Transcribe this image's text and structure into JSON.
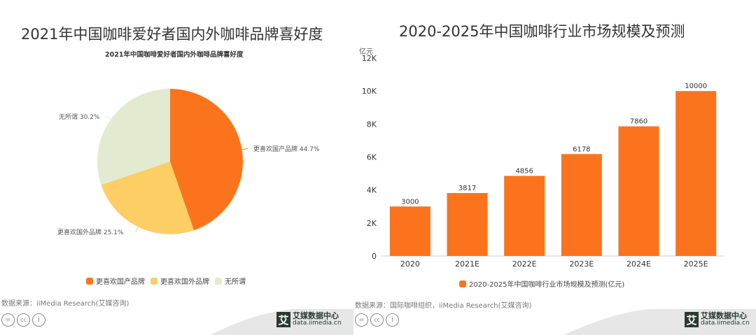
{
  "colors": {
    "orange": "#FB741D",
    "yellow": "#FDCE63",
    "green": "#E2EBCF",
    "footer_gray": "#e4e4e4",
    "logo_dark": "#2a3a33"
  },
  "chart_data": [
    {
      "type": "pie",
      "title": "2021年中国咖啡爱好者国内外咖啡品牌喜好度",
      "subtitle": "2021年中国咖啡爱好者国内外咖啡品牌喜好度",
      "slices": [
        {
          "label": "更喜欢国产品牌",
          "value": 44.7,
          "display": "更喜欢国产品牌 44.7%",
          "color": "#FB741D"
        },
        {
          "label": "更喜欢国外品牌",
          "value": 25.1,
          "display": "更喜欢国外品牌 25.1%",
          "color": "#FDCE63"
        },
        {
          "label": "无所谓",
          "value": 30.2,
          "display": "无所谓 30.2%",
          "color": "#E2EBCF"
        }
      ],
      "legend_position": "bottom",
      "source": "数据来源：iiMedia Research(艾媒咨询)"
    },
    {
      "type": "bar",
      "title": "2020-2025年中国咖啡行业市场规模及预测",
      "ylabel": "亿元",
      "categories": [
        "2020",
        "2021E",
        "2022E",
        "2023E",
        "2024E",
        "2025E"
      ],
      "values": [
        3000,
        3817,
        4856,
        6178,
        7860,
        10000
      ],
      "ylim": [
        0,
        12000
      ],
      "yticks": [
        {
          "v": 0,
          "label": "0"
        },
        {
          "v": 2000,
          "label": "2K"
        },
        {
          "v": 4000,
          "label": "4K"
        },
        {
          "v": 6000,
          "label": "6K"
        },
        {
          "v": 8000,
          "label": "8K"
        },
        {
          "v": 10000,
          "label": "10K"
        },
        {
          "v": 12000,
          "label": "12K"
        }
      ],
      "series_name": "2020-2025年中国咖啡行业市场规模及预测(亿元)",
      "color": "#FB741D",
      "grid": false,
      "legend_position": "bottom",
      "source": "数据来源：国际咖啡组织，iiMedia Research(艾媒咨询)"
    }
  ],
  "footer": {
    "logo_text": "艾媒数据中心",
    "logo_char": "艾",
    "url": "data.iimedia.cn",
    "license_icons": [
      "=",
      "cc",
      "i"
    ]
  }
}
